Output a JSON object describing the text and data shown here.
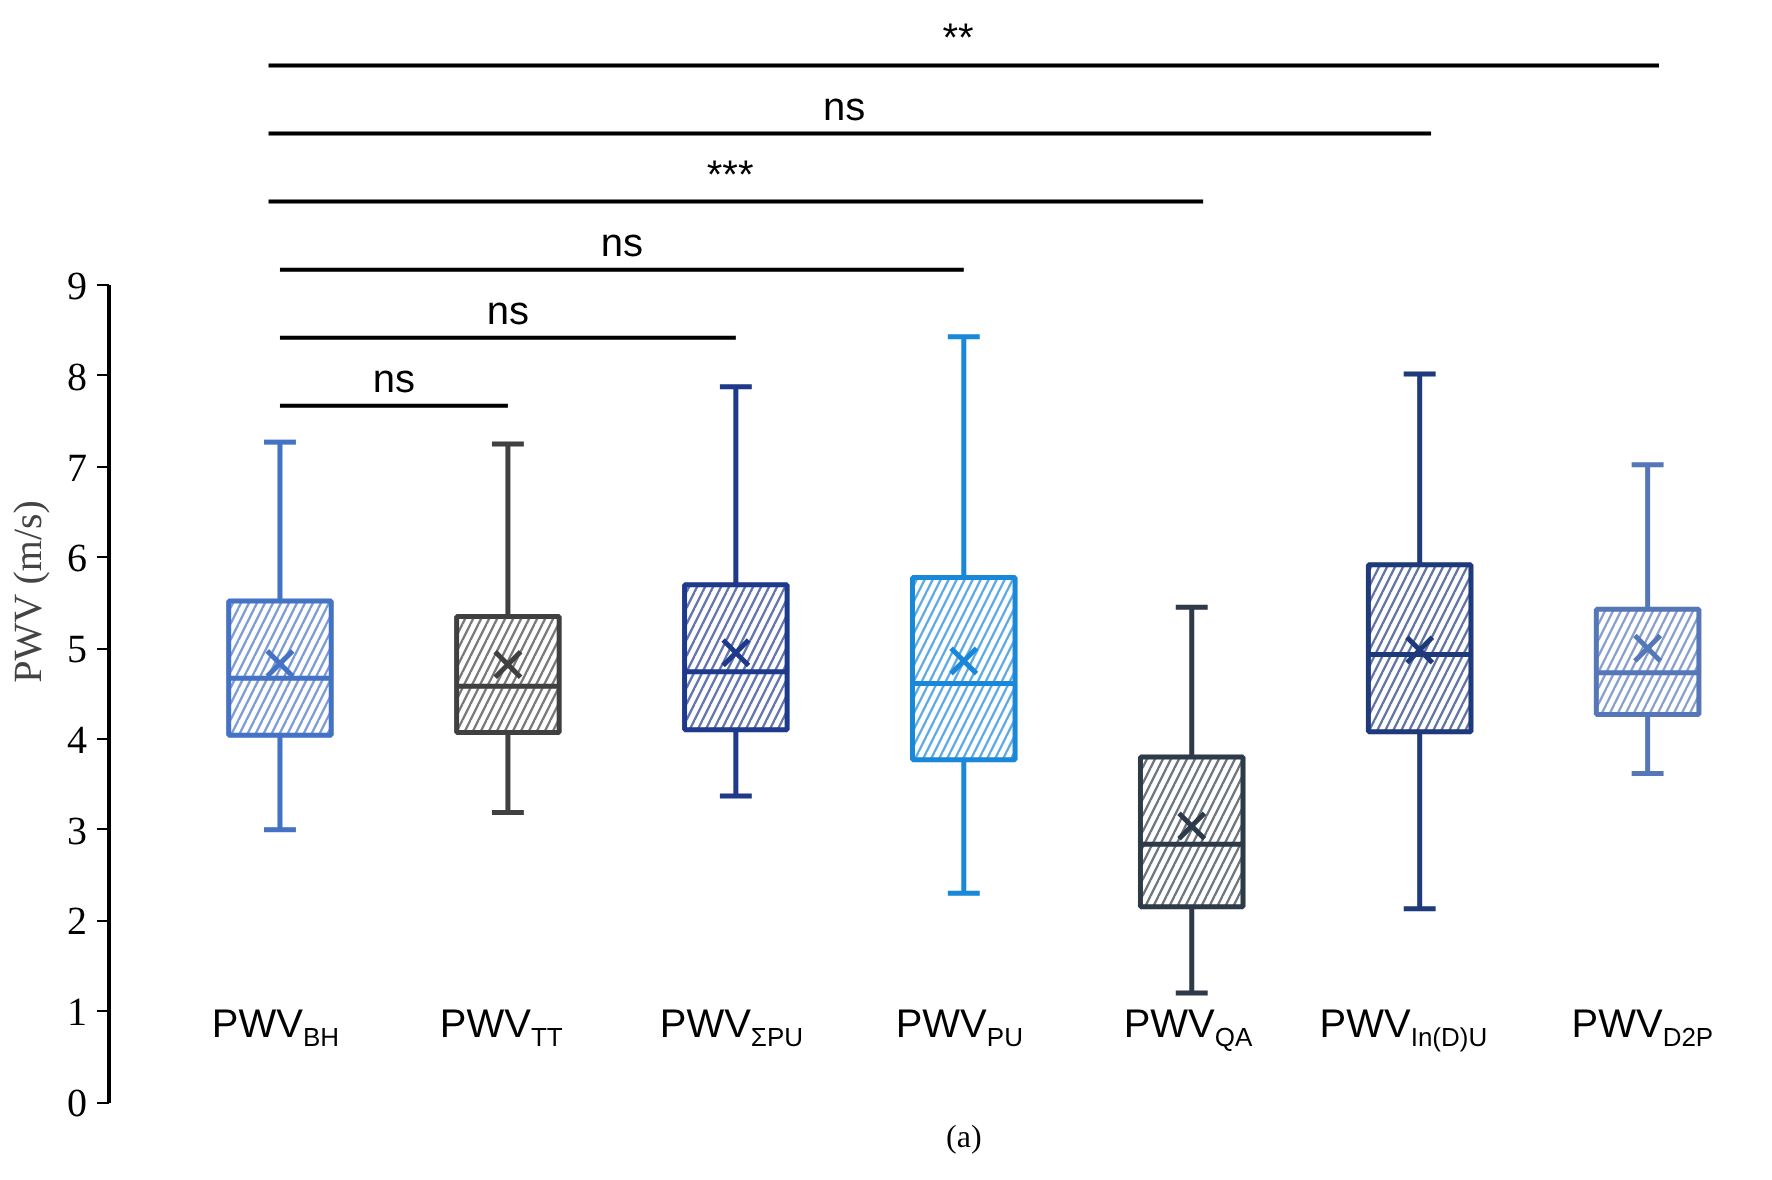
{
  "chart_data": {
    "type": "box",
    "ylabel": "PWV  (m/s)",
    "categories": [
      "PWV$_{BH}$",
      "PWV$_{TT}$",
      "PWV$_{ΣPU}$",
      "PWV$_{PU}$",
      "PWV$_{QA}$",
      "PWV$_{In(D)U}$",
      "PWV$_{D2P}$"
    ],
    "series": [
      {
        "colors": [
          "#4472c4",
          "#404040",
          "#1f3a8a",
          "#1a88d8",
          "#2f3a48",
          "#1f3a7a",
          "#5577b8"
        ],
        "boxes": [
          {
            "low": 3.0,
            "q1": 4.04,
            "median": 4.67,
            "q3": 5.52,
            "high": 7.27,
            "mean": 4.83
          },
          {
            "low": 3.19,
            "q1": 4.07,
            "median": 4.58,
            "q3": 5.35,
            "high": 7.25,
            "mean": 4.82
          },
          {
            "low": 3.37,
            "q1": 4.1,
            "median": 4.74,
            "q3": 5.7,
            "high": 7.88,
            "mean": 4.95
          },
          {
            "low": 2.3,
            "q1": 3.77,
            "median": 4.61,
            "q3": 5.78,
            "high": 8.43,
            "mean": 4.86
          },
          {
            "low": 1.2,
            "q1": 2.15,
            "median": 2.84,
            "q3": 3.8,
            "high": 5.45,
            "mean": 3.04
          },
          {
            "low": 2.13,
            "q1": 4.08,
            "median": 4.93,
            "q3": 5.92,
            "high": 8.02,
            "mean": 4.98
          },
          {
            "low": 3.62,
            "q1": 4.27,
            "median": 4.73,
            "q3": 5.43,
            "high": 7.02,
            "mean": 5.0
          }
        ]
      }
    ],
    "ylim": [
      0,
      9
    ],
    "yticks": [
      0,
      1,
      2,
      3,
      4,
      5,
      6,
      7,
      8,
      9
    ],
    "grid": false,
    "tick_labels": "y",
    "annotations": [
      "ns",
      "ns",
      "ns",
      "***",
      "ns",
      "**",
      "(a)"
    ]
  }
}
